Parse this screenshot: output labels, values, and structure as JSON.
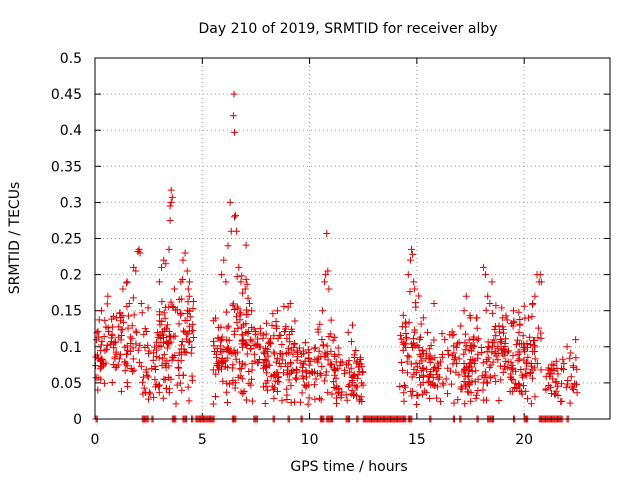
{
  "chart_data": {
    "type": "scatter",
    "title": "Day 210 of 2019, SRMTID for receiver alby",
    "xlabel": "GPS time / hours",
    "ylabel": "SRMTID / TECUs",
    "xlim": [
      0,
      24
    ],
    "ylim": [
      0,
      0.5
    ],
    "xticks": [
      0,
      5,
      10,
      15,
      20
    ],
    "xtick_labels": [
      "0",
      "5",
      "10",
      "15",
      "20"
    ],
    "yticks": [
      0,
      0.05,
      0.1,
      0.15,
      0.2,
      0.25,
      0.3,
      0.35,
      0.4,
      0.45,
      0.5
    ],
    "ytick_labels": [
      "0",
      "0.05",
      "0.1",
      "0.15",
      "0.2",
      "0.25",
      "0.3",
      "0.35",
      "0.4",
      "0.45",
      "0.5"
    ],
    "grid": true,
    "marker": "+",
    "series_color": "#e00000",
    "series": [
      {
        "name": "SRMTID",
        "clusters": [
          {
            "x_range": [
              0.0,
              0.5
            ],
            "baseline": 0.09,
            "spread": 0.04,
            "count": 30
          },
          {
            "x_range": [
              0.5,
              1.2
            ],
            "baseline": 0.1,
            "spread": 0.05,
            "count": 35
          },
          {
            "x_range": [
              1.2,
              2.2
            ],
            "baseline": 0.11,
            "spread": 0.06,
            "count": 45
          },
          {
            "x_range": [
              2.2,
              3.0
            ],
            "baseline": 0.08,
            "spread": 0.05,
            "count": 40
          },
          {
            "x_range": [
              3.0,
              3.8
            ],
            "baseline": 0.1,
            "spread": 0.07,
            "count": 60
          },
          {
            "x_range": [
              3.8,
              4.6
            ],
            "baseline": 0.11,
            "spread": 0.07,
            "count": 55
          },
          {
            "x_range": [
              5.5,
              6.3
            ],
            "baseline": 0.09,
            "spread": 0.05,
            "count": 55
          },
          {
            "x_range": [
              6.3,
              7.2
            ],
            "baseline": 0.11,
            "spread": 0.08,
            "count": 70
          },
          {
            "x_range": [
              7.2,
              8.2
            ],
            "baseline": 0.08,
            "spread": 0.05,
            "count": 60
          },
          {
            "x_range": [
              8.2,
              9.3
            ],
            "baseline": 0.08,
            "spread": 0.05,
            "count": 70
          },
          {
            "x_range": [
              9.3,
              10.3
            ],
            "baseline": 0.07,
            "spread": 0.04,
            "count": 50
          },
          {
            "x_range": [
              10.3,
              11.2
            ],
            "baseline": 0.08,
            "spread": 0.05,
            "count": 45
          },
          {
            "x_range": [
              11.2,
              12.5
            ],
            "baseline": 0.06,
            "spread": 0.04,
            "count": 70
          },
          {
            "x_range": [
              14.2,
              15.2
            ],
            "baseline": 0.09,
            "spread": 0.06,
            "count": 60
          },
          {
            "x_range": [
              15.2,
              16.5
            ],
            "baseline": 0.07,
            "spread": 0.04,
            "count": 60
          },
          {
            "x_range": [
              16.5,
              17.5
            ],
            "baseline": 0.07,
            "spread": 0.05,
            "count": 55
          },
          {
            "x_range": [
              17.5,
              18.5
            ],
            "baseline": 0.08,
            "spread": 0.05,
            "count": 55
          },
          {
            "x_range": [
              18.5,
              19.6
            ],
            "baseline": 0.09,
            "spread": 0.05,
            "count": 70
          },
          {
            "x_range": [
              19.6,
              20.8
            ],
            "baseline": 0.09,
            "spread": 0.05,
            "count": 70
          },
          {
            "x_range": [
              21.0,
              22.5
            ],
            "baseline": 0.06,
            "spread": 0.03,
            "count": 50
          }
        ],
        "notable_points": [
          [
            0.3,
            0.15
          ],
          [
            0.6,
            0.17
          ],
          [
            1.0,
            0.14
          ],
          [
            1.3,
            0.18
          ],
          [
            1.5,
            0.19
          ],
          [
            1.6,
            0.16
          ],
          [
            1.8,
            0.21
          ],
          [
            1.9,
            0.205
          ],
          [
            2.0,
            0.232
          ],
          [
            2.05,
            0.235
          ],
          [
            2.1,
            0.23
          ],
          [
            3.0,
            0.19
          ],
          [
            3.1,
            0.21
          ],
          [
            3.2,
            0.22
          ],
          [
            3.3,
            0.215
          ],
          [
            3.45,
            0.235
          ],
          [
            3.5,
            0.275
          ],
          [
            3.5,
            0.295
          ],
          [
            3.55,
            0.3
          ],
          [
            3.55,
            0.317
          ],
          [
            3.6,
            0.307
          ],
          [
            3.7,
            0.18
          ],
          [
            4.0,
            0.19
          ],
          [
            4.1,
            0.22
          ],
          [
            4.2,
            0.23
          ],
          [
            4.3,
            0.205
          ],
          [
            4.35,
            0.18
          ],
          [
            4.4,
            0.19
          ],
          [
            5.9,
            0.2
          ],
          [
            6.0,
            0.22
          ],
          [
            6.1,
            0.19
          ],
          [
            6.2,
            0.24
          ],
          [
            6.3,
            0.3
          ],
          [
            6.35,
            0.26
          ],
          [
            6.45,
            0.42
          ],
          [
            6.48,
            0.45
          ],
          [
            6.5,
            0.397
          ],
          [
            6.5,
            0.28
          ],
          [
            6.55,
            0.282
          ],
          [
            6.6,
            0.26
          ],
          [
            6.7,
            0.21
          ],
          [
            6.8,
            0.19
          ],
          [
            7.0,
            0.18
          ],
          [
            7.2,
            0.16
          ],
          [
            7.3,
            0.15
          ],
          [
            8.5,
            0.15
          ],
          [
            9.0,
            0.155
          ],
          [
            9.1,
            0.16
          ],
          [
            10.6,
            0.15
          ],
          [
            10.7,
            0.19
          ],
          [
            10.75,
            0.2
          ],
          [
            10.8,
            0.257
          ],
          [
            10.85,
            0.205
          ],
          [
            10.9,
            0.18
          ],
          [
            11.8,
            0.12
          ],
          [
            12.0,
            0.13
          ],
          [
            14.6,
            0.2
          ],
          [
            14.7,
            0.22
          ],
          [
            14.75,
            0.235
          ],
          [
            14.8,
            0.228
          ],
          [
            14.85,
            0.19
          ],
          [
            14.9,
            0.18
          ],
          [
            14.95,
            0.155
          ],
          [
            15.3,
            0.14
          ],
          [
            15.5,
            0.12
          ],
          [
            15.8,
            0.16
          ],
          [
            16.3,
            0.11
          ],
          [
            17.2,
            0.15
          ],
          [
            17.3,
            0.17
          ],
          [
            17.5,
            0.14
          ],
          [
            17.8,
            0.14
          ],
          [
            18.1,
            0.21
          ],
          [
            18.2,
            0.2
          ],
          [
            18.3,
            0.17
          ],
          [
            18.4,
            0.16
          ],
          [
            18.5,
            0.19
          ],
          [
            19.0,
            0.14
          ],
          [
            19.5,
            0.15
          ],
          [
            19.8,
            0.13
          ],
          [
            20.2,
            0.14
          ],
          [
            20.4,
            0.16
          ],
          [
            20.5,
            0.17
          ],
          [
            20.6,
            0.2
          ],
          [
            20.7,
            0.19
          ],
          [
            20.75,
            0.2
          ],
          [
            20.8,
            0.19
          ],
          [
            21.5,
            0.08
          ],
          [
            22.0,
            0.1
          ],
          [
            22.4,
            0.11
          ]
        ],
        "zero_value_segments": [
          [
            0.05,
            0.15
          ],
          [
            2.2,
            2.5
          ],
          [
            2.65,
            2.75
          ],
          [
            3.6,
            3.8
          ],
          [
            4.1,
            4.3
          ],
          [
            4.5,
            4.6
          ],
          [
            4.7,
            5.0
          ],
          [
            5.0,
            5.6
          ],
          [
            6.4,
            6.6
          ],
          [
            7.4,
            7.6
          ],
          [
            8.3,
            8.4
          ],
          [
            9.0,
            9.1
          ],
          [
            9.6,
            9.7
          ],
          [
            10.5,
            10.7
          ],
          [
            10.8,
            11.1
          ],
          [
            11.7,
            11.9
          ],
          [
            12.2,
            12.3
          ],
          [
            12.5,
            13.0
          ],
          [
            13.0,
            14.5
          ],
          [
            14.6,
            14.8
          ],
          [
            15.6,
            15.7
          ],
          [
            16.7,
            16.8
          ],
          [
            17.0,
            17.1
          ],
          [
            17.8,
            17.9
          ],
          [
            18.3,
            18.6
          ],
          [
            19.5,
            19.6
          ],
          [
            20.0,
            20.2
          ],
          [
            20.7,
            21.0
          ],
          [
            21.0,
            21.8
          ],
          [
            22.0,
            22.1
          ]
        ]
      }
    ]
  }
}
